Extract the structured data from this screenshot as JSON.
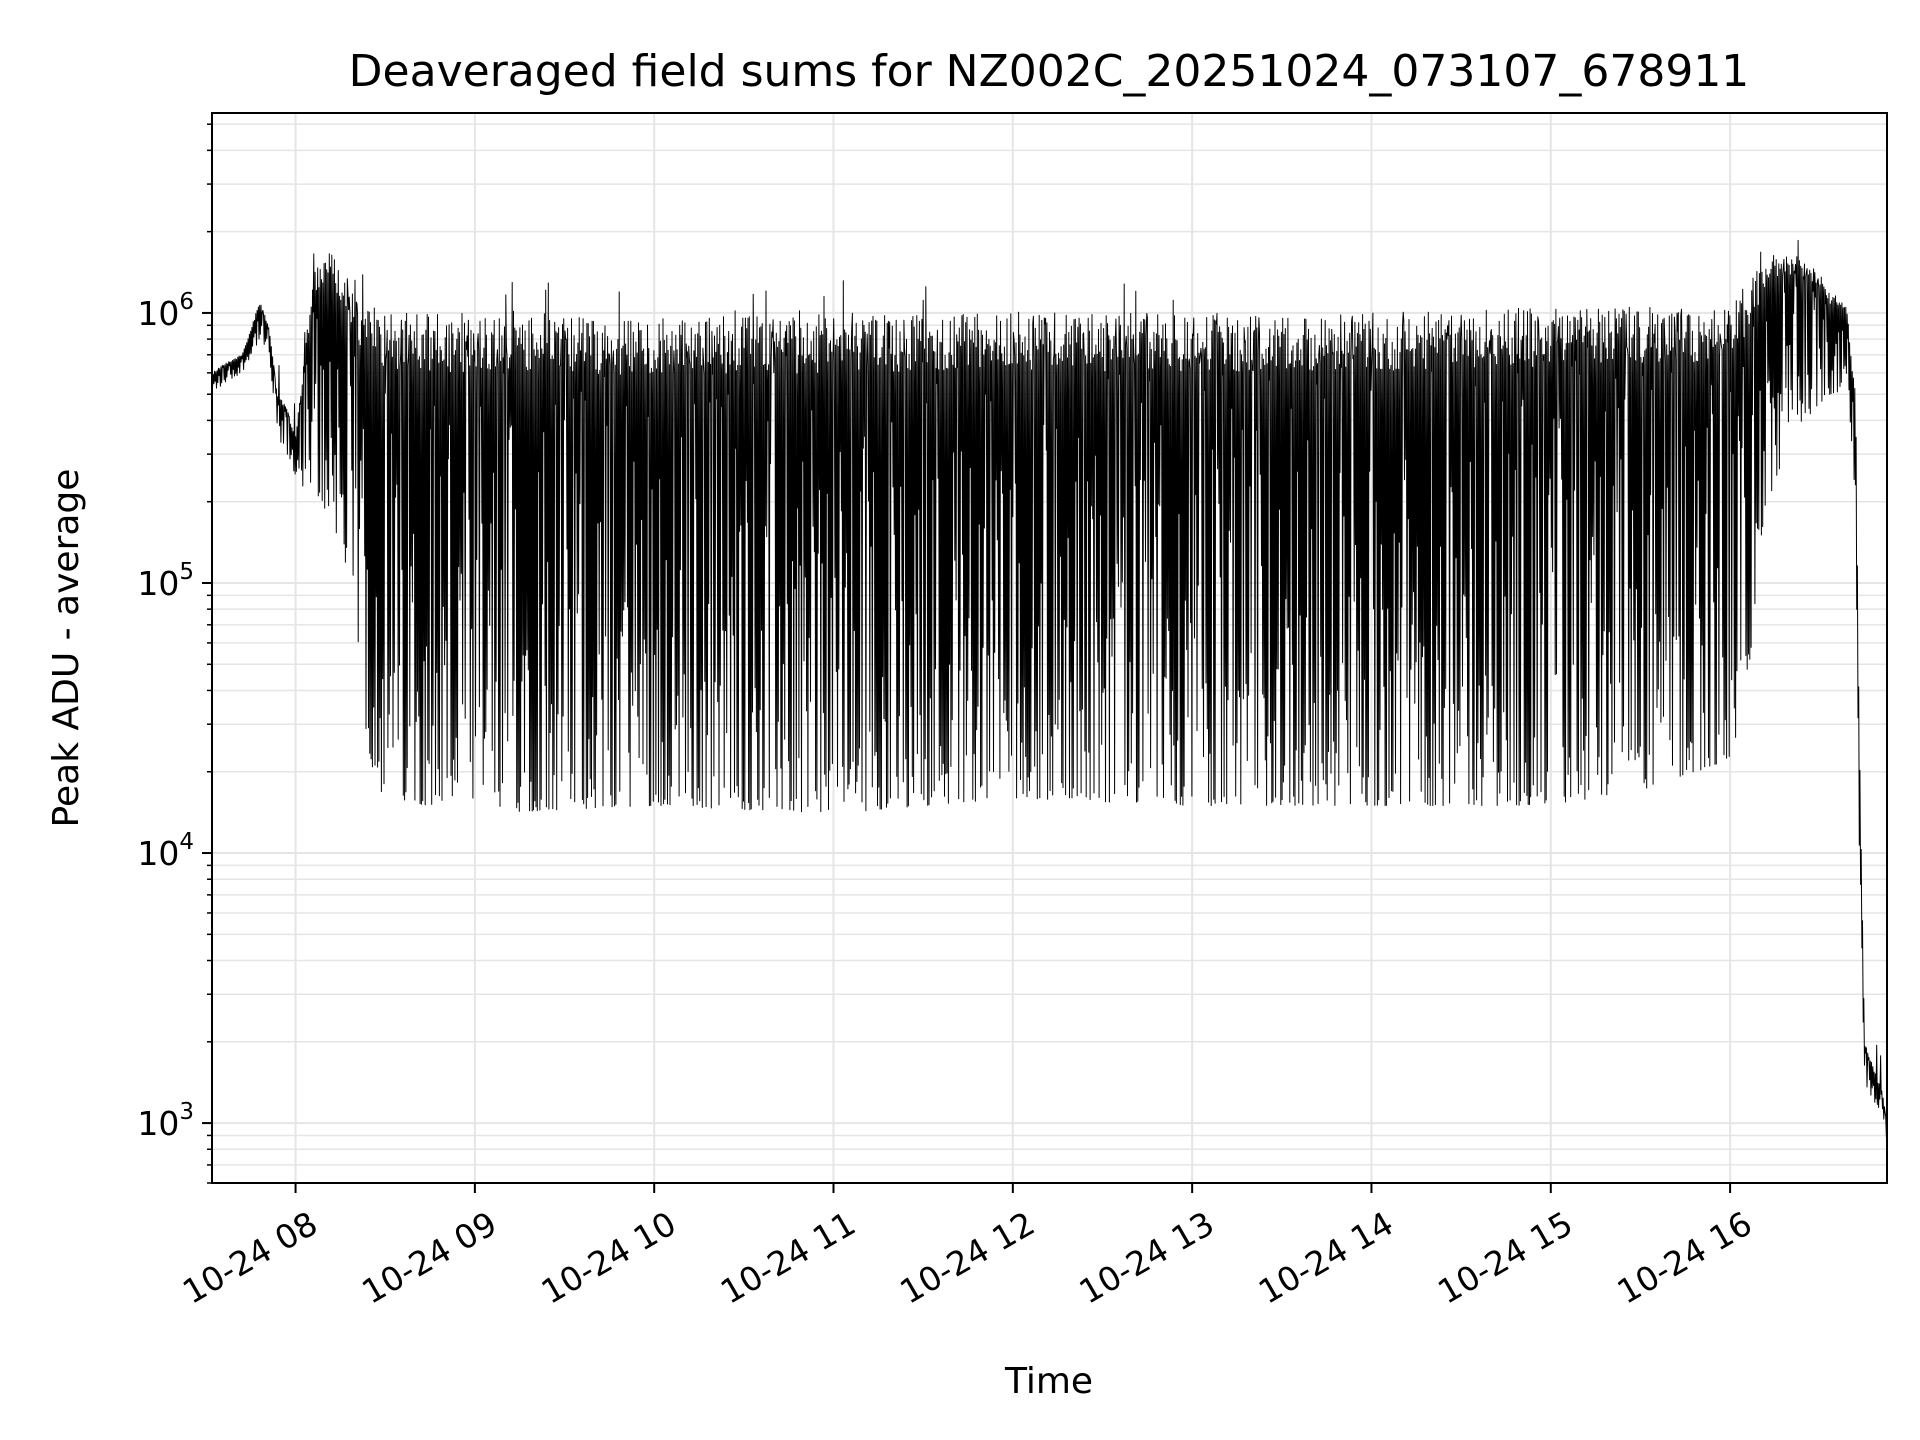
{
  "chart_data": {
    "type": "line",
    "title": "Deaveraged field sums for NZ002C_20251024_073107_678911",
    "xlabel": "Time",
    "ylabel": "Peak ADU - average",
    "yscale": "log",
    "ylim": [
      600,
      5500000
    ],
    "xlim_hours": [
      7.534,
      16.875
    ],
    "grid": true,
    "line_color": "#000000",
    "grid_color": "#e5e5e5",
    "x_ticks": [
      {
        "hour": 8,
        "label": "10-24 08"
      },
      {
        "hour": 9,
        "label": "10-24 09"
      },
      {
        "hour": 10,
        "label": "10-24 10"
      },
      {
        "hour": 11,
        "label": "10-24 11"
      },
      {
        "hour": 12,
        "label": "10-24 12"
      },
      {
        "hour": 13,
        "label": "10-24 13"
      },
      {
        "hour": 14,
        "label": "10-24 14"
      },
      {
        "hour": 15,
        "label": "10-24 15"
      },
      {
        "hour": 16,
        "label": "10-24 16"
      }
    ],
    "y_ticks": [
      {
        "value": 1000,
        "base": "10",
        "exp": "3"
      },
      {
        "value": 10000,
        "base": "10",
        "exp": "4"
      },
      {
        "value": 100000,
        "base": "10",
        "exp": "5"
      },
      {
        "value": 1000000,
        "base": "10",
        "exp": "6"
      }
    ],
    "series": [
      {
        "name": "Deaveraged field sum",
        "hours": [
          7.534,
          7.6,
          7.7,
          7.8,
          7.85,
          7.9,
          7.95,
          8.0,
          8.1,
          8.2,
          8.3,
          8.35,
          8.4,
          8.45,
          8.5,
          9.0,
          10.0,
          11.0,
          12.0,
          13.0,
          14.0,
          15.0,
          15.5,
          15.9,
          16.0,
          16.05,
          16.1,
          16.15,
          16.2,
          16.3,
          16.4,
          16.5,
          16.55,
          16.6,
          16.62,
          16.65,
          16.7,
          16.72,
          16.75,
          16.8,
          16.85,
          16.875
        ],
        "upper_envelope": [
          600000,
          650000,
          700000,
          1100000,
          900000,
          500000,
          450000,
          350000,
          1500000,
          1700000,
          1300000,
          1100000,
          1050000,
          1050000,
          1000000,
          1000000,
          950000,
          1000000,
          1000000,
          1000000,
          1000000,
          1050000,
          1050000,
          1050000,
          1100000,
          1150000,
          1300000,
          1450000,
          1600000,
          1700000,
          1600000,
          1400000,
          1200000,
          1150000,
          1150000,
          1050000,
          500000,
          30000,
          2000,
          1600,
          1300,
          1000
        ],
        "lower_envelope": [
          500000,
          550000,
          600000,
          800000,
          700000,
          350000,
          300000,
          250000,
          200000,
          180000,
          100000,
          60000,
          25000,
          18000,
          16000,
          14000,
          15000,
          14000,
          16000,
          15000,
          15000,
          15000,
          17000,
          21000,
          22000,
          30000,
          45000,
          90000,
          180000,
          300000,
          400000,
          450000,
          500000,
          500000,
          550000,
          600000,
          200000,
          10000,
          1400,
          1200,
          1100,
          850
        ]
      }
    ]
  }
}
